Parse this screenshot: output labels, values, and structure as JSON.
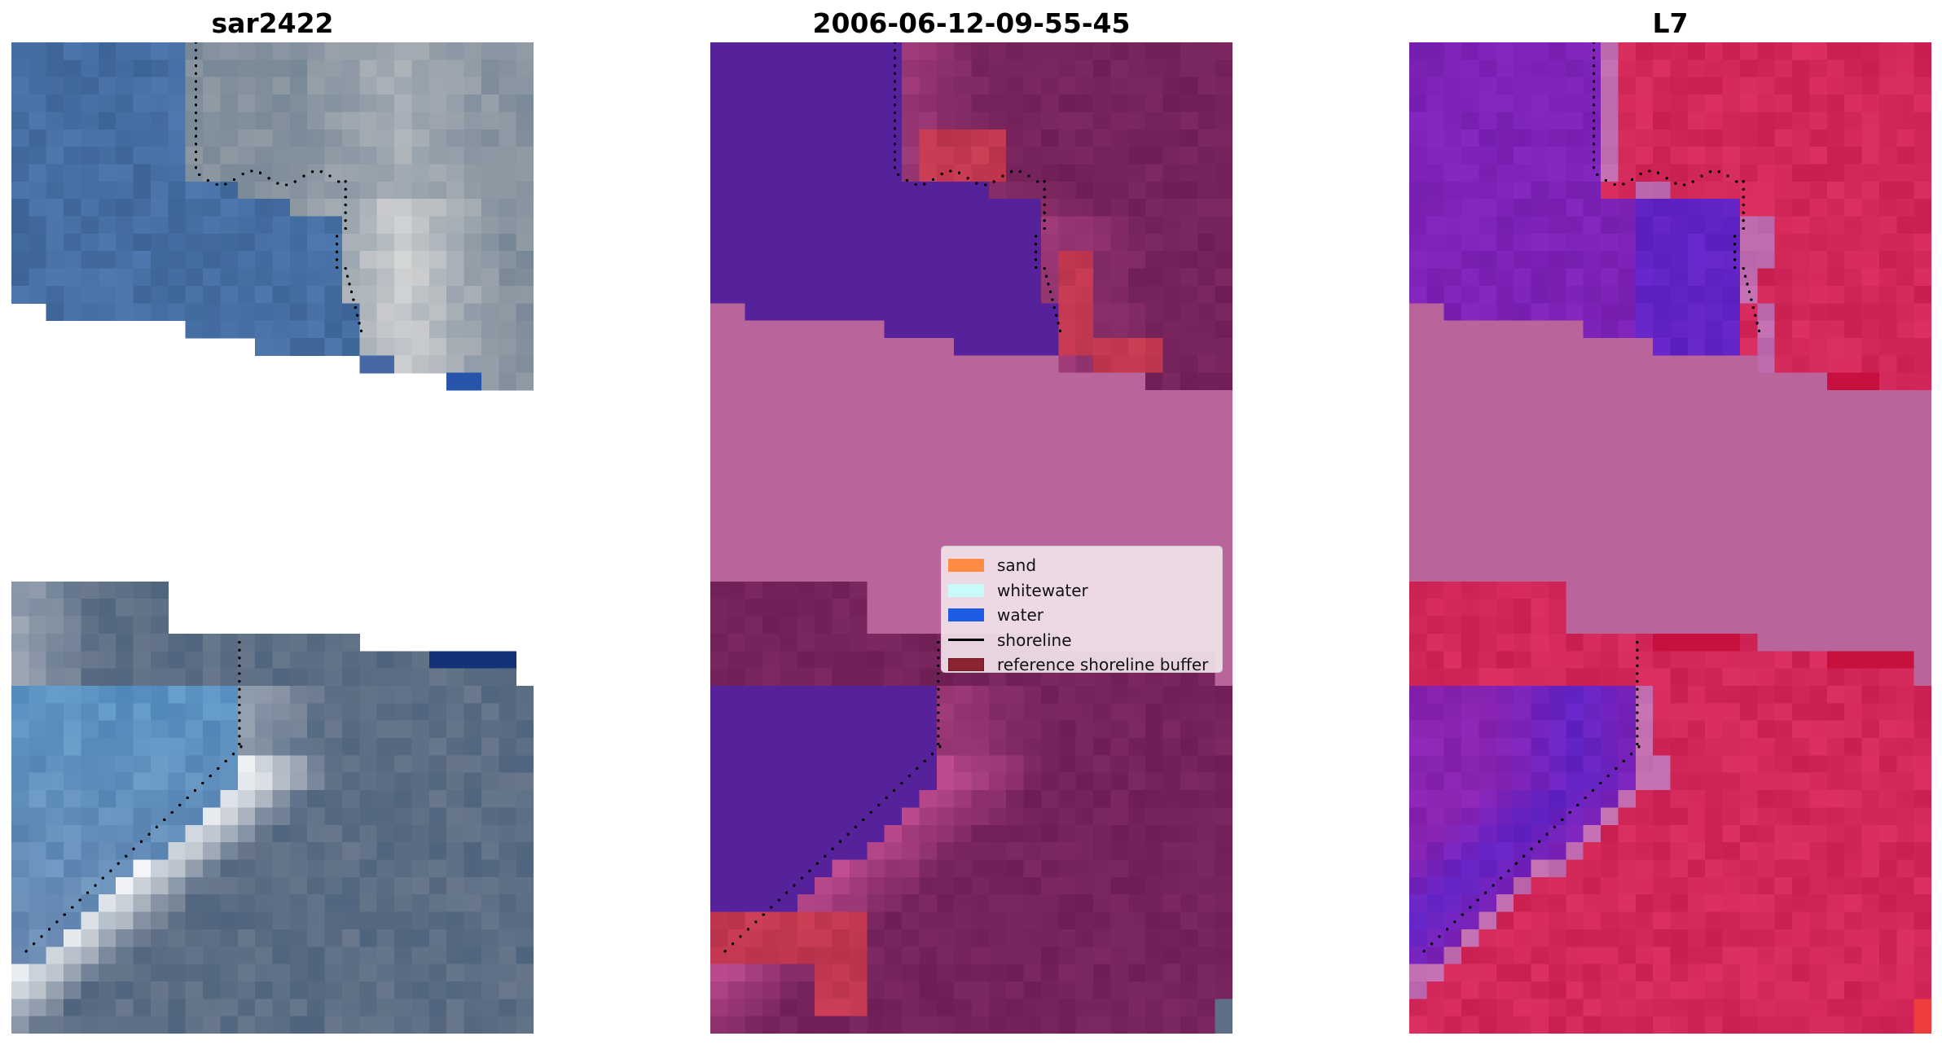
{
  "panels": [
    {
      "title": "sar2422",
      "kind": "rgb image with detected shoreline"
    },
    {
      "title": "2006-06-12-09-55-45",
      "kind": "classified image"
    },
    {
      "title": "L7",
      "kind": "index image"
    }
  ],
  "legend": {
    "items": [
      {
        "label": "sand",
        "color": "#ff8c42",
        "type": "patch"
      },
      {
        "label": "whitewater",
        "color": "#c8fafa",
        "type": "patch"
      },
      {
        "label": "water",
        "color": "#1f5ce6",
        "type": "patch"
      },
      {
        "label": "shoreline",
        "color": "#000000",
        "type": "line"
      },
      {
        "label": "reference shoreline buffer",
        "color": "#8b2331",
        "type": "patch"
      }
    ]
  },
  "colors": {
    "no_data": "#b9649a",
    "shoreline_dots": "#000000"
  }
}
